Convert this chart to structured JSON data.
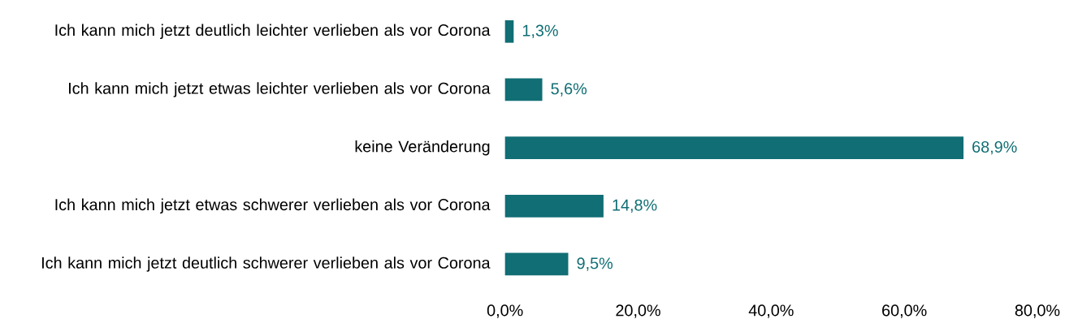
{
  "chart_data": {
    "type": "bar",
    "orientation": "horizontal",
    "categories": [
      "Ich kann mich jetzt deutlich leichter verlieben als vor Corona",
      "Ich kann mich jetzt etwas leichter verlieben als vor Corona",
      "keine Veränderung",
      "Ich kann mich jetzt etwas schwerer verlieben als vor Corona",
      "Ich kann mich jetzt deutlich schwerer verlieben als vor Corona"
    ],
    "values": [
      1.3,
      5.6,
      68.9,
      14.8,
      9.5
    ],
    "value_labels": [
      "1,3%",
      "5,6%",
      "68,9%",
      "14,8%",
      "9,5%"
    ],
    "color": "#106e74",
    "xlim": [
      0,
      80
    ],
    "xticks": [
      {
        "value": 0,
        "label": "0,0%"
      },
      {
        "value": 20,
        "label": "20,0%"
      },
      {
        "value": 40,
        "label": "40,0%"
      },
      {
        "value": 60,
        "label": "60,0%"
      },
      {
        "value": 80,
        "label": "80,0%"
      }
    ],
    "grid": false
  }
}
